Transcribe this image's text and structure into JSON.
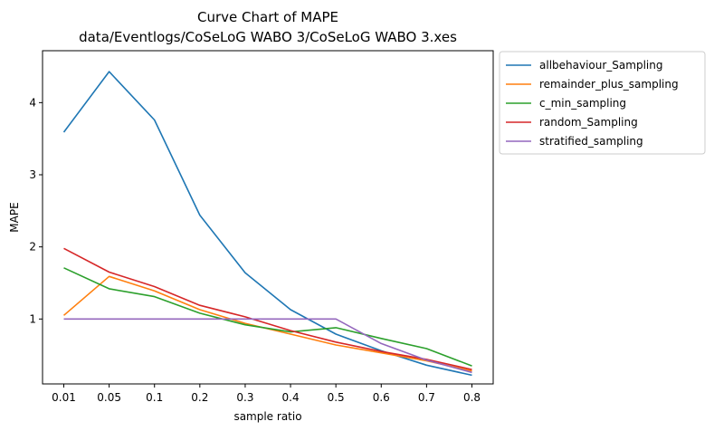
{
  "chart_data": {
    "type": "line",
    "title": "Curve Chart of MAPE",
    "subtitle": "data/Eventlogs/CoSeLoG WABO 3/CoSeLoG WABO 3.xes",
    "xlabel": "sample ratio",
    "ylabel": "MAPE",
    "categories": [
      "0.01",
      "0.05",
      "0.1",
      "0.2",
      "0.3",
      "0.4",
      "0.5",
      "0.6",
      "0.7",
      "0.8"
    ],
    "ylim": [
      0.1,
      4.72
    ],
    "yticks": [
      1,
      2,
      3,
      4
    ],
    "grid": false,
    "legend_placement": "outside-right-top",
    "series": [
      {
        "name": "allbehaviour_Sampling",
        "color": "#1f77b4",
        "values": [
          3.59,
          4.43,
          3.76,
          2.44,
          1.64,
          1.13,
          0.79,
          0.56,
          0.36,
          0.22
        ]
      },
      {
        "name": "remainder_plus_sampling",
        "color": "#ff7f0e",
        "values": [
          1.05,
          1.59,
          1.39,
          1.13,
          0.94,
          0.79,
          0.64,
          0.53,
          0.42,
          0.28
        ]
      },
      {
        "name": "c_min_sampling",
        "color": "#2ca02c",
        "values": [
          1.71,
          1.42,
          1.31,
          1.08,
          0.92,
          0.82,
          0.88,
          0.73,
          0.59,
          0.35
        ]
      },
      {
        "name": "random_Sampling",
        "color": "#d62728",
        "values": [
          1.98,
          1.65,
          1.45,
          1.19,
          1.03,
          0.84,
          0.68,
          0.55,
          0.44,
          0.3
        ]
      },
      {
        "name": "stratified_sampling",
        "color": "#9467bd",
        "values": [
          1.0,
          1.0,
          1.0,
          1.0,
          1.0,
          1.0,
          1.0,
          0.66,
          0.43,
          0.26
        ]
      }
    ]
  }
}
